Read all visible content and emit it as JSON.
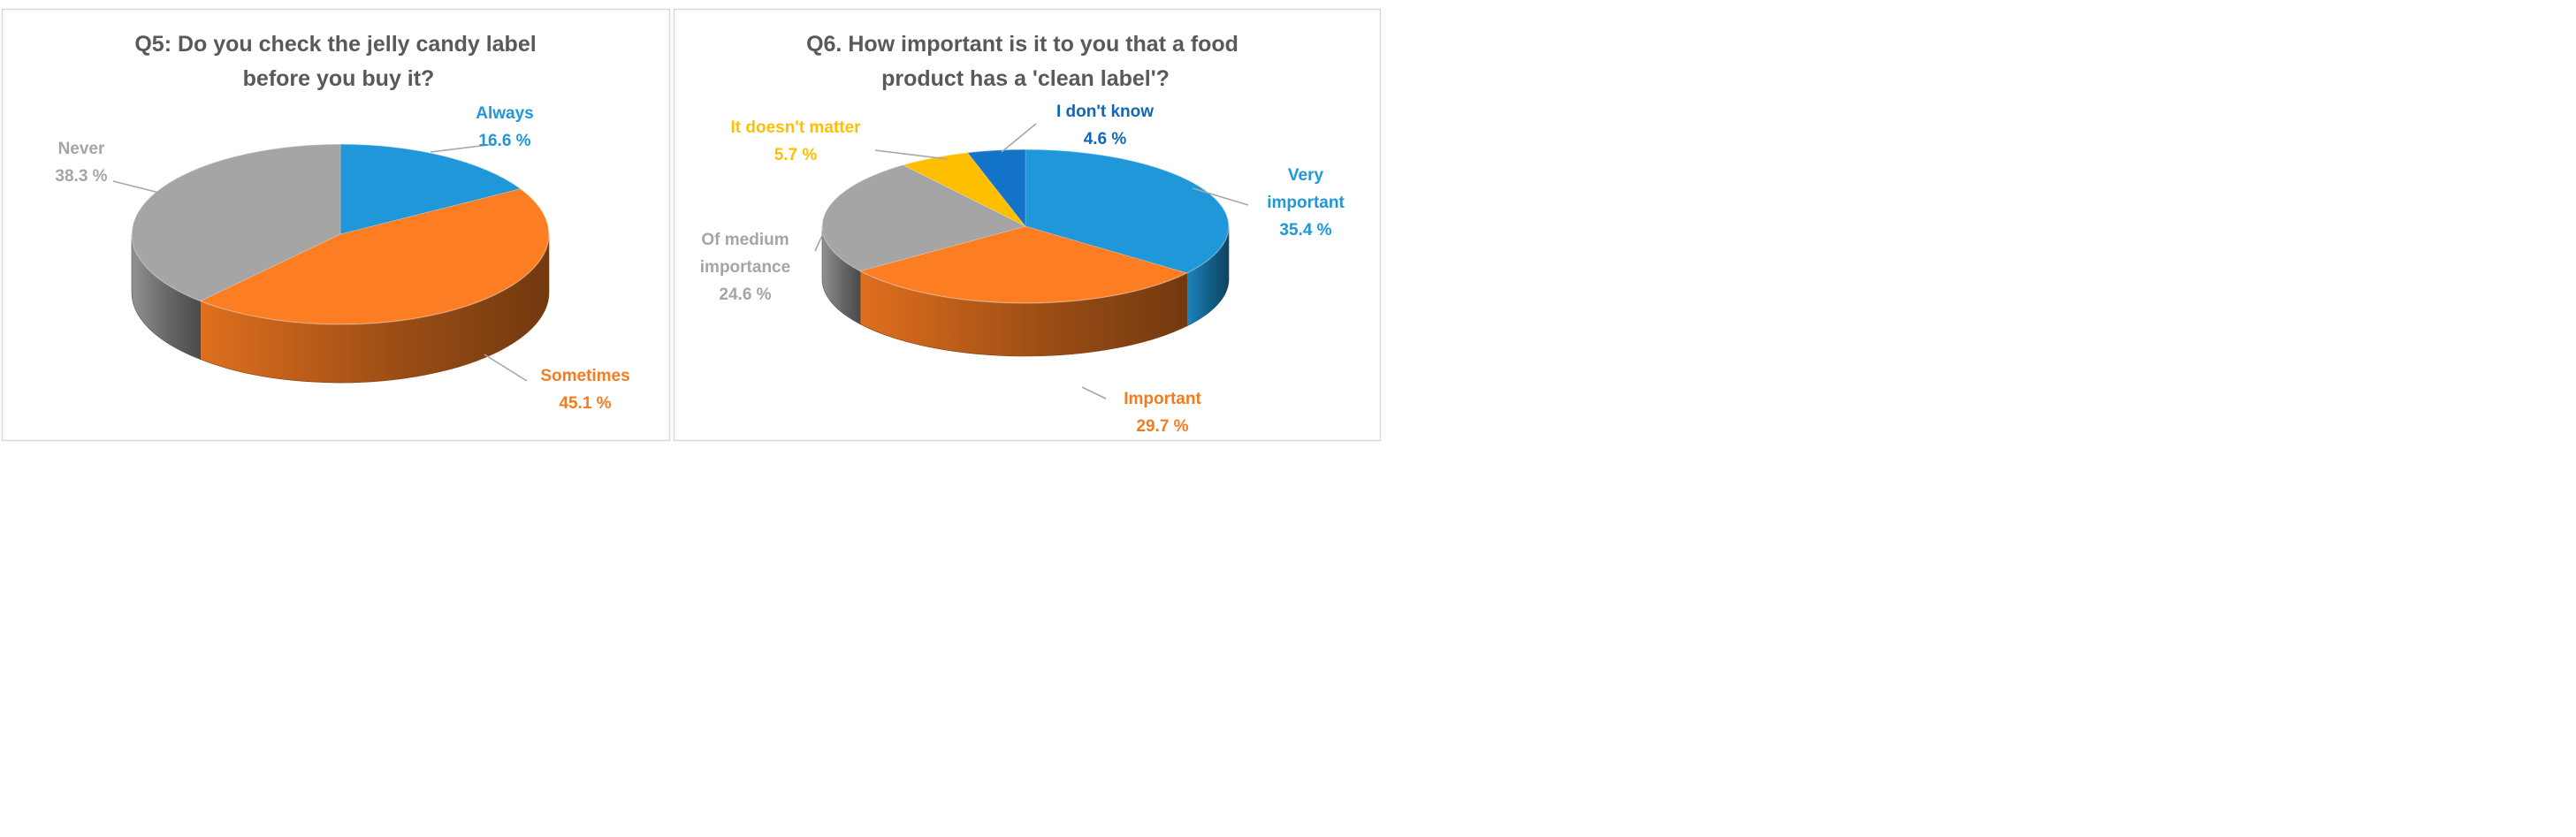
{
  "chart_data": [
    {
      "type": "pie",
      "title": "Q5:  Do you check the jelly candy label before you buy it?",
      "title_lines": [
        "Q5:  Do you check the jelly candy label",
        "before you buy it?"
      ],
      "legend": "none",
      "slices": [
        {
          "label": "Always",
          "label_lines": [
            "Always"
          ],
          "value": 16.6,
          "value_text": "16.6 %",
          "color": "#1f97d8",
          "label_color": "#1f97d8"
        },
        {
          "label": "Sometimes",
          "label_lines": [
            "Sometimes"
          ],
          "value": 45.1,
          "value_text": "45.1 %",
          "color": "#fd7e22",
          "label_color": "#f57b20"
        },
        {
          "label": "Never",
          "label_lines": [
            "Never"
          ],
          "value": 38.3,
          "value_text": "38.3 %",
          "color": "#a5a5a5",
          "label_color": "#a5a5a5"
        }
      ]
    },
    {
      "type": "pie",
      "title": "Q6. How important is it to you that a food product has a 'clean label'?",
      "title_lines": [
        "Q6. How important is it to you that a food",
        "product has a 'clean label'?"
      ],
      "legend": "none",
      "slices": [
        {
          "label": "Very important",
          "label_lines": [
            "Very",
            "important"
          ],
          "value": 35.4,
          "value_text": "35.4 %",
          "color": "#1f97d8",
          "label_color": "#1f97d8"
        },
        {
          "label": "Important",
          "label_lines": [
            "Important"
          ],
          "value": 29.7,
          "value_text": "29.7 %",
          "color": "#fd7e22",
          "label_color": "#f57b20"
        },
        {
          "label": "Of medium importance",
          "label_lines": [
            "Of medium",
            "importance"
          ],
          "value": 24.6,
          "value_text": "24.6 %",
          "color": "#a5a5a5",
          "label_color": "#a5a5a5"
        },
        {
          "label": "It doesn't matter",
          "label_lines": [
            "It doesn't matter"
          ],
          "value": 5.7,
          "value_text": "5.7 %",
          "color": "#ffbf00",
          "label_color": "#ffbf00"
        },
        {
          "label": "I don't know",
          "label_lines": [
            "I don't know"
          ],
          "value": 4.6,
          "value_text": "4.6 %",
          "color": "#1273c9",
          "label_color": "#1365b6"
        }
      ]
    }
  ]
}
